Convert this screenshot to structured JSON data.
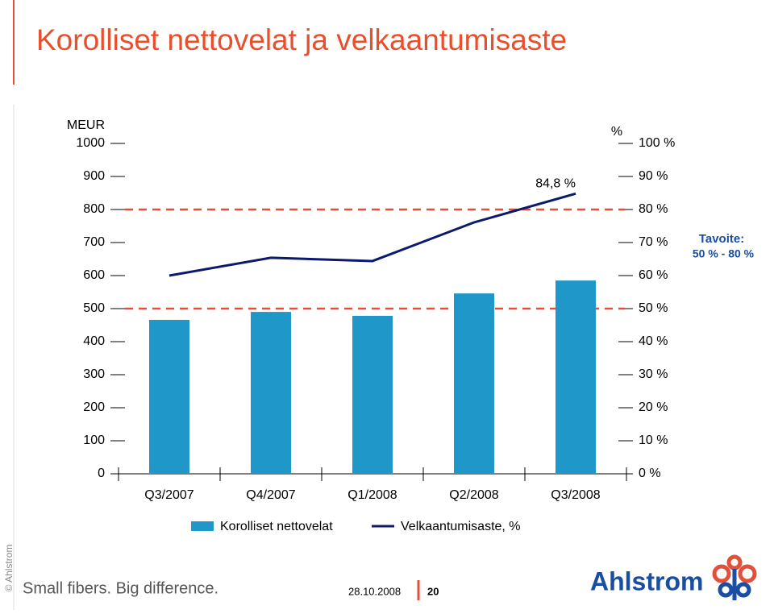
{
  "chart_data": {
    "type": "bar-line",
    "title": "Korolliset nettovelat ja velkaantumisaste",
    "ylabel": "MEUR",
    "y2label": "%",
    "categories": [
      "Q3/2007",
      "Q4/2007",
      "Q1/2008",
      "Q2/2008",
      "Q3/2008"
    ],
    "series": [
      {
        "name": "Korolliset nettovelat",
        "type": "bar",
        "color": "#1f97c9",
        "values": [
          466,
          490,
          478,
          546,
          585
        ]
      },
      {
        "name": "Velkaantumisaste, %",
        "type": "line",
        "axis": "y2",
        "color": "#0c1a6b",
        "values": [
          60.0,
          65.4,
          64.4,
          76.1,
          84.8
        ],
        "value_labels": [
          null,
          null,
          null,
          null,
          "84,8 %"
        ]
      }
    ],
    "ylim": [
      0,
      1000
    ],
    "yticks": [
      0,
      100,
      200,
      300,
      400,
      500,
      600,
      700,
      800,
      900,
      1000
    ],
    "y2lim": [
      0,
      100
    ],
    "y2ticks": [
      {
        "value": 0,
        "label": "0 %"
      },
      {
        "value": 10,
        "label": "10 %"
      },
      {
        "value": 20,
        "label": "20 %"
      },
      {
        "value": 30,
        "label": "30 %"
      },
      {
        "value": 40,
        "label": "40 %"
      },
      {
        "value": 50,
        "label": "50 %"
      },
      {
        "value": 60,
        "label": "60 %"
      },
      {
        "value": 70,
        "label": "70 %"
      },
      {
        "value": 80,
        "label": "80 %"
      },
      {
        "value": 90,
        "label": "90 %"
      },
      {
        "value": 100,
        "label": "100 %"
      }
    ],
    "target": {
      "label": "Tavoite:",
      "range_label": "50 % - 80 %",
      "values": [
        50,
        80
      ],
      "axis": "y2",
      "color": "#e2503c"
    }
  },
  "footer": {
    "slogan": "Small fibers. Big difference.",
    "date": "28.10.2008",
    "page": 20,
    "copyright": "© Ahlstrom",
    "logo": "Ahlstrom"
  }
}
